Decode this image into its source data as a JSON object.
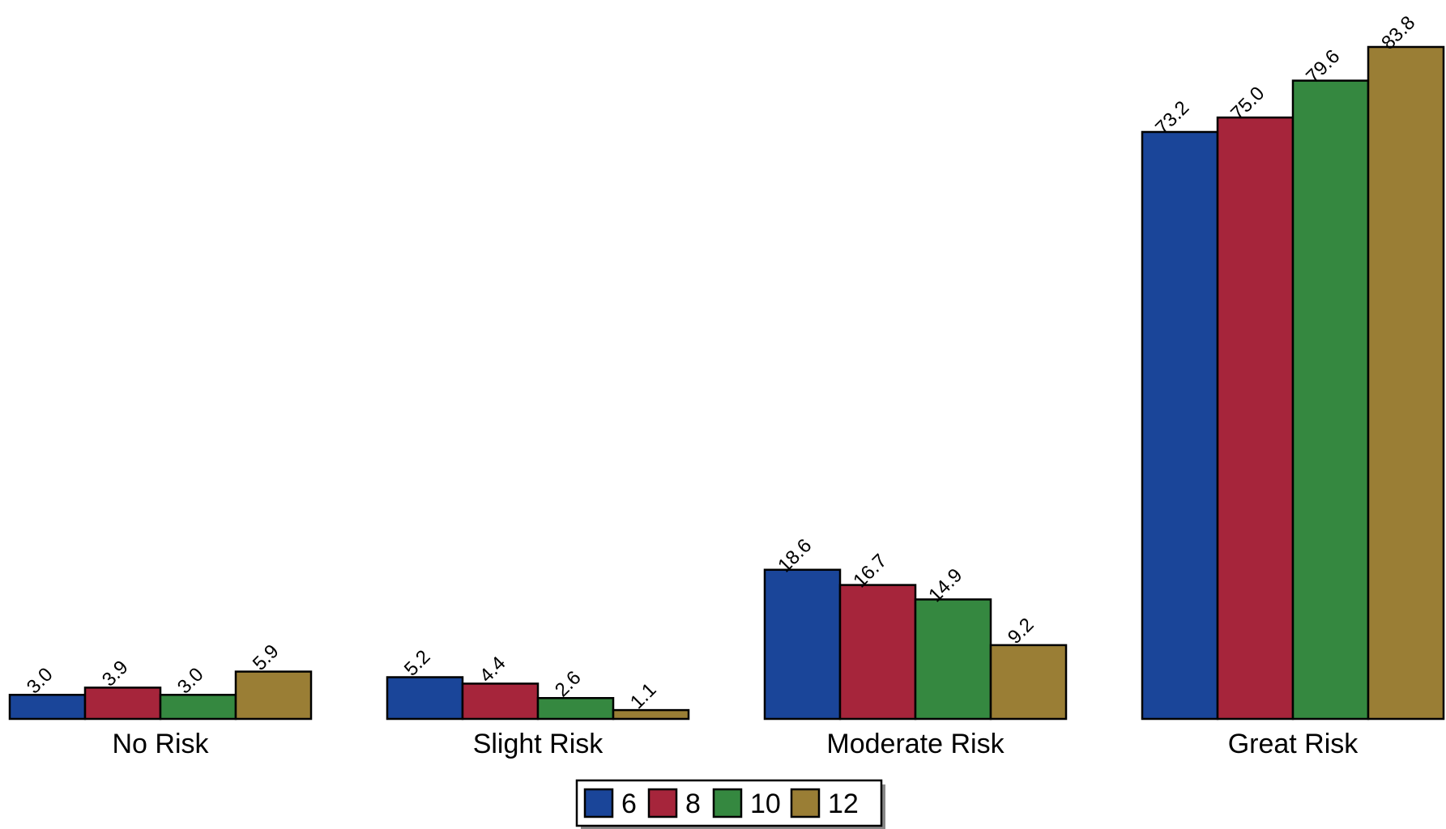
{
  "chart_data": {
    "type": "bar",
    "categories": [
      "No Risk",
      "Slight Risk",
      "Moderate Risk",
      "Great Risk"
    ],
    "series": [
      {
        "name": "6",
        "color": "#1a4599",
        "values": [
          3.0,
          5.2,
          18.6,
          73.2
        ],
        "labels": [
          "3.0",
          "5.2",
          "18.6",
          "73.2"
        ]
      },
      {
        "name": "8",
        "color": "#a6253b",
        "values": [
          3.9,
          4.4,
          16.7,
          75.0
        ],
        "labels": [
          "3.9",
          "4.4",
          "16.7",
          "75.0"
        ]
      },
      {
        "name": "10",
        "color": "#358840",
        "values": [
          3.0,
          2.6,
          14.9,
          79.6
        ],
        "labels": [
          "3.0",
          "2.6",
          "14.9",
          "79.6"
        ]
      },
      {
        "name": "12",
        "color": "#9a7e35",
        "values": [
          5.9,
          1.1,
          9.2,
          83.8
        ],
        "labels": [
          "5.9",
          "1.1",
          "9.2",
          "83.8"
        ]
      }
    ],
    "ylim": [
      0,
      88
    ],
    "grid": false,
    "legend_position": "bottom-center"
  }
}
